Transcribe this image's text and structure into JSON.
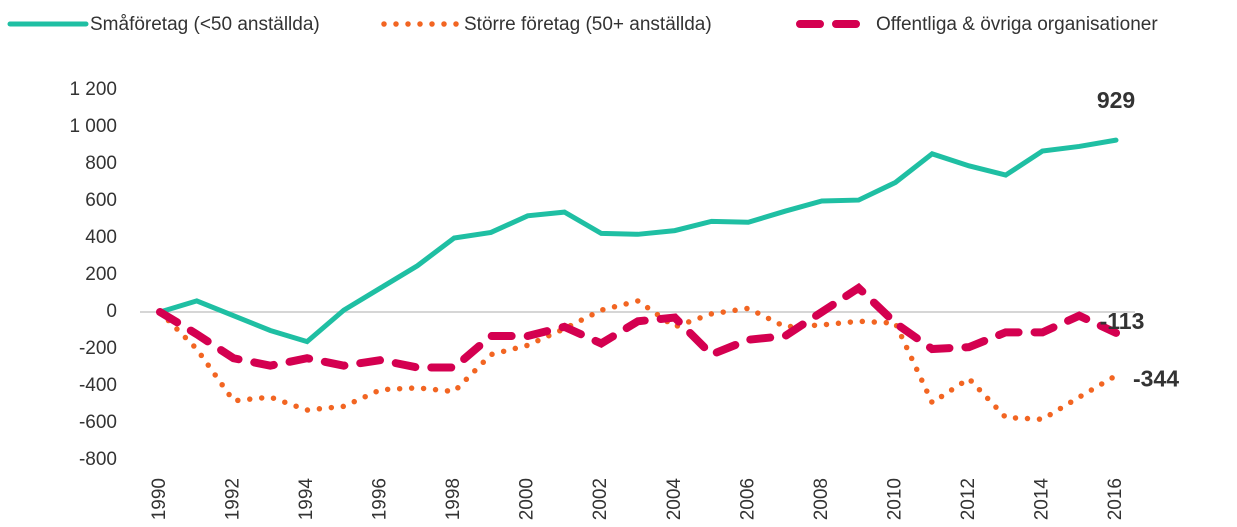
{
  "chart_data": {
    "type": "line",
    "x": [
      1990,
      1991,
      1992,
      1993,
      1994,
      1995,
      1996,
      1997,
      1998,
      1999,
      2000,
      2001,
      2002,
      2003,
      2004,
      2005,
      2006,
      2007,
      2008,
      2009,
      2010,
      2011,
      2012,
      2013,
      2014,
      2015,
      2016
    ],
    "xlim": [
      1990,
      2016
    ],
    "xticks": [
      1990,
      1992,
      1994,
      1996,
      1998,
      2000,
      2002,
      2004,
      2006,
      2008,
      2010,
      2012,
      2014,
      2016
    ],
    "ylim": [
      -800,
      1200
    ],
    "yticks": [
      -800,
      -600,
      -400,
      -200,
      0,
      200,
      400,
      600,
      800,
      {
        "value": 1000,
        "label": "1 000"
      },
      {
        "value": 1200,
        "label": "1 200"
      }
    ],
    "grid": false,
    "legend": "top",
    "end_labels": true,
    "series": [
      {
        "name": "Småföretag (<50 anställda)",
        "color": "#1fbfa3",
        "style": "solid",
        "values": [
          0,
          60,
          -20,
          -100,
          -160,
          10,
          130,
          250,
          400,
          430,
          520,
          540,
          425,
          420,
          440,
          490,
          485,
          545,
          600,
          605,
          700,
          855,
          790,
          740,
          870,
          895,
          929
        ]
      },
      {
        "name": "Större företag (50+ anställda)",
        "color": "#f26522",
        "style": "dotted",
        "values": [
          0,
          -200,
          -480,
          -460,
          -530,
          -510,
          -420,
          -410,
          -430,
          -230,
          -180,
          -90,
          10,
          60,
          -80,
          -10,
          20,
          -80,
          -70,
          -50,
          -60,
          -490,
          -360,
          -570,
          -580,
          -460,
          -344
        ]
      },
      {
        "name": "Offentliga & övriga organisationer",
        "color": "#d40050",
        "style": "dashed",
        "values": [
          0,
          -120,
          -250,
          -290,
          -250,
          -290,
          -260,
          -300,
          -300,
          -130,
          -130,
          -80,
          -170,
          -50,
          -30,
          -230,
          -150,
          -130,
          0,
          130,
          -60,
          -200,
          -190,
          -110,
          -110,
          -20,
          -113
        ]
      }
    ]
  }
}
